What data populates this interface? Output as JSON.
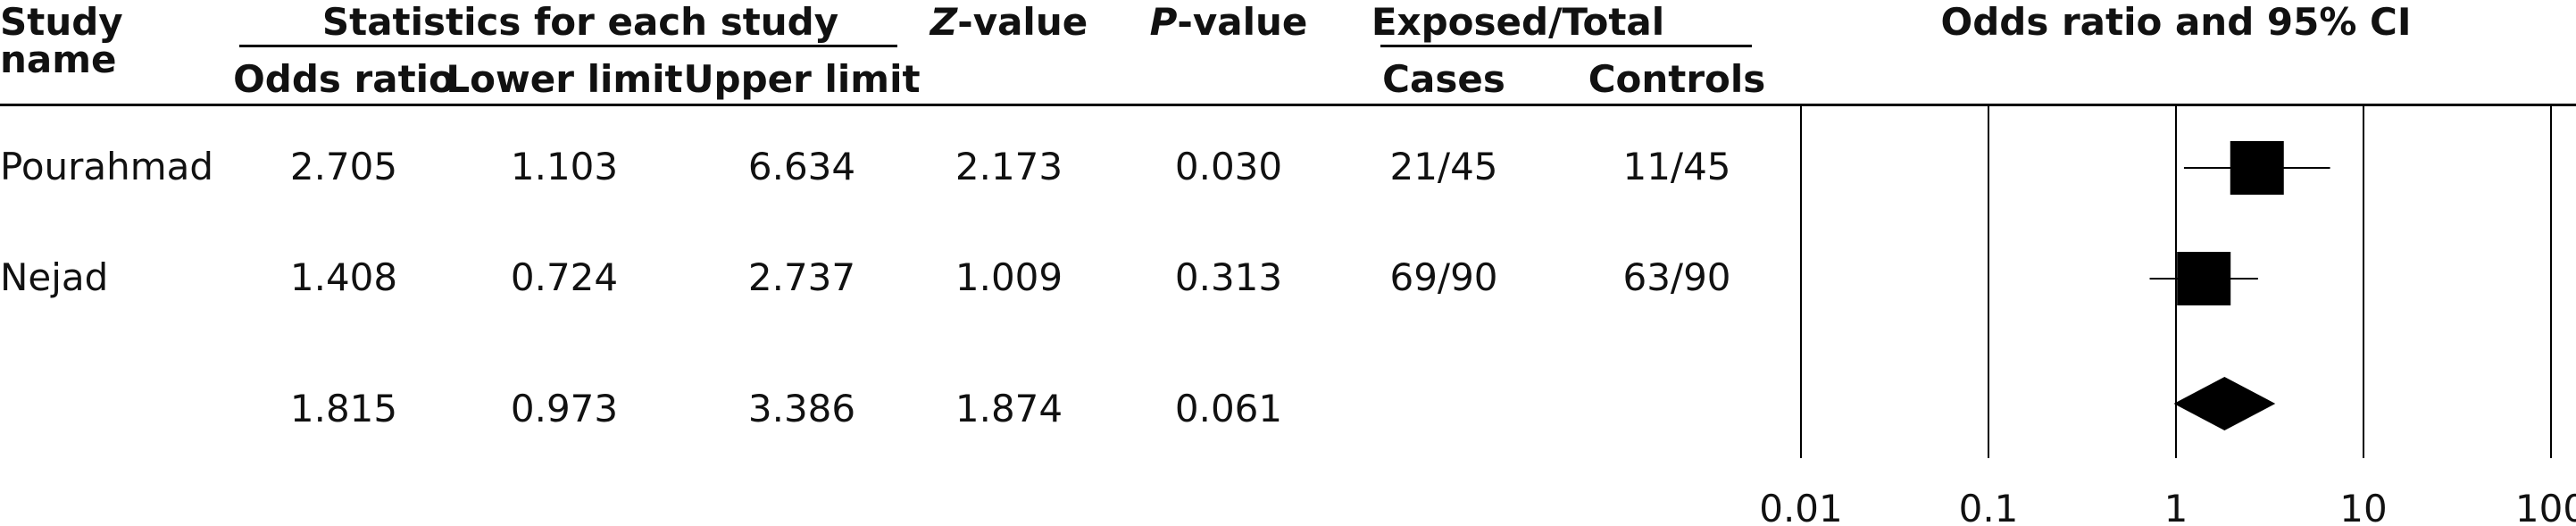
{
  "header": {
    "study_name_line1": "Study",
    "study_name_line2": "name",
    "stats_group": "Statistics for each study",
    "odds_ratio": "Odds ratio",
    "lower_limit": "Lower limit",
    "upper_limit": "Upper limit",
    "z_prefix": "Z",
    "z_suffix": "-value",
    "p_prefix": "P",
    "p_suffix": "-value",
    "exposed_group": "Exposed/Total",
    "cases": "Cases",
    "controls": "Controls",
    "plot_title": "Odds ratio and 95% CI"
  },
  "rows": [
    {
      "study": "Pourahmad",
      "or": "2.705",
      "lower": "1.103",
      "upper": "6.634",
      "z": "2.173",
      "p": "0.030",
      "cases": "21/45",
      "controls": "11/45"
    },
    {
      "study": "Nejad",
      "or": "1.408",
      "lower": "0.724",
      "upper": "2.737",
      "z": "1.009",
      "p": "0.313",
      "cases": "69/90",
      "controls": "63/90"
    },
    {
      "study": "",
      "or": "1.815",
      "lower": "0.973",
      "upper": "3.386",
      "z": "1.874",
      "p": "0.061",
      "cases": "",
      "controls": ""
    }
  ],
  "chart_data": {
    "type": "forest",
    "title": "Odds ratio and 95% CI",
    "x_scale": "log",
    "xlim": [
      0.01,
      100
    ],
    "x_ticks": [
      "0.01",
      "0.1",
      "1",
      "10",
      "100"
    ],
    "studies": [
      {
        "name": "Pourahmad",
        "or": 2.705,
        "lower": 1.103,
        "upper": 6.634,
        "marker": "square"
      },
      {
        "name": "Nejad",
        "or": 1.408,
        "lower": 0.724,
        "upper": 2.737,
        "marker": "square"
      }
    ],
    "pooled": {
      "or": 1.815,
      "lower": 0.973,
      "upper": 3.386,
      "marker": "diamond"
    },
    "marker_color": "#000000"
  }
}
